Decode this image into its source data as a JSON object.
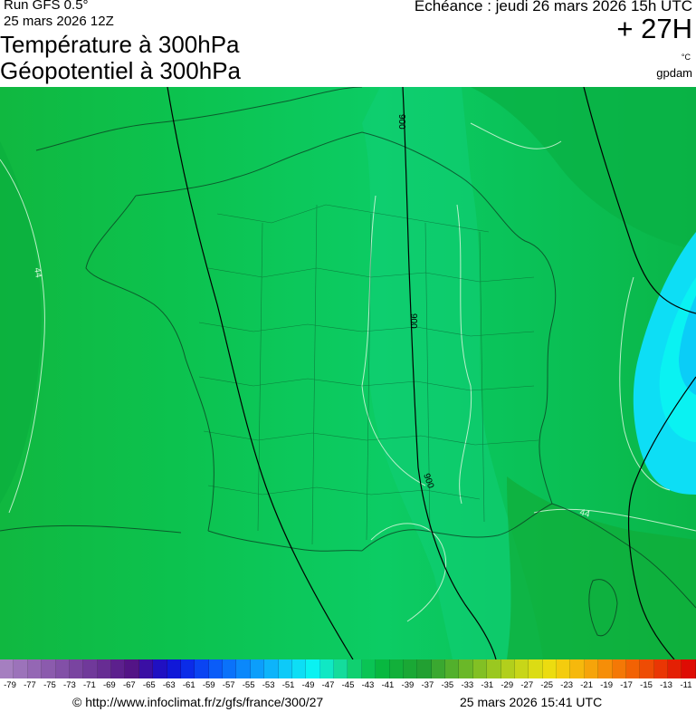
{
  "header": {
    "run": "Run GFS 0.5°",
    "run_date": "25 mars 2026 12Z",
    "title_line1": "Température à 300hPa",
    "title_line2": "Géopotentiel à 300hPa",
    "echeance": "Echéance : jeudi 26 mars 2026 15h UTC",
    "horizon": "+ 27H",
    "unit": "°C",
    "author": "gpdam"
  },
  "map": {
    "contour_labels": {
      "iso_44_west": "44",
      "iso_44_se": "44",
      "geo_900_north": "900",
      "geo_900_mid": "900",
      "geo_900_south": "900"
    }
  },
  "legend": {
    "labels": [
      "-79",
      "-77",
      "-75",
      "-73",
      "-71",
      "-69",
      "-67",
      "-65",
      "-63",
      "-61",
      "-59",
      "-57",
      "-55",
      "-53",
      "-51",
      "-49",
      "-47",
      "-45",
      "-43",
      "-41",
      "-39",
      "-37",
      "-35",
      "-33",
      "-31",
      "-29",
      "-27",
      "-25",
      "-23",
      "-21",
      "-19",
      "-17",
      "-15",
      "-13",
      "-11"
    ],
    "colors": [
      "#a57fc0",
      "#9c73ba",
      "#9467b4",
      "#8b5bad",
      "#8250a7",
      "#7944a0",
      "#70399a",
      "#672d93",
      "#5c208d",
      "#531486",
      "#3a0fa4",
      "#2010c2",
      "#1018d8",
      "#0b2ce8",
      "#0a44f2",
      "#0a5cf8",
      "#0a72fa",
      "#0b88fb",
      "#0c9efb",
      "#0db4fa",
      "#0dcaf8",
      "#0ddef5",
      "#0af2f2",
      "#10e8c4",
      "#14dc9c",
      "#10d070",
      "#0ac454",
      "#08b840",
      "#12b03a",
      "#1aa835",
      "#22a032",
      "#3aa830",
      "#52b02c",
      "#6ab828",
      "#82c024",
      "#9ac820",
      "#b2cf1c",
      "#c8d618",
      "#dcdc14",
      "#ecdc10",
      "#f4cc0e",
      "#f6b80c",
      "#f6a40a",
      "#f68e08",
      "#f47806",
      "#f26204",
      "#ee4c04",
      "#ea3604",
      "#e42004",
      "#de0c04"
    ]
  },
  "footer": {
    "copyright": "© http://www.infoclimat.fr/z/gfs/france/300/27",
    "generated": "25 mars 2026 15:41 UTC"
  }
}
